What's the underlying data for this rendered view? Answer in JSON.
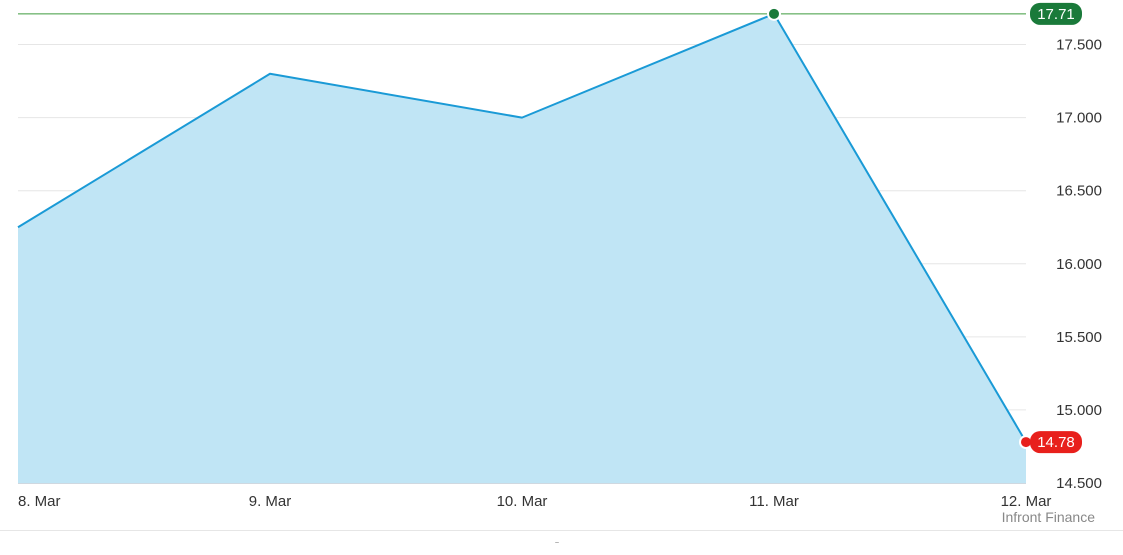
{
  "chart_data": {
    "type": "area",
    "x": [
      "8. Mar",
      "9. Mar",
      "10. Mar",
      "11. Mar",
      "12. Mar"
    ],
    "values": [
      16.25,
      17.3,
      17.0,
      17.71,
      14.78
    ],
    "ylim": [
      14.5,
      17.75
    ],
    "y_ticks": [
      14.5,
      15.0,
      15.5,
      16.0,
      16.5,
      17.0,
      17.5
    ],
    "y_tick_labels": [
      "14.500",
      "15.000",
      "15.500",
      "16.000",
      "16.500",
      "17.000",
      "17.500"
    ],
    "grid": true,
    "high": {
      "value": 17.71,
      "label": "17.71",
      "color": "#1a7a3a"
    },
    "low": {
      "value": 14.78,
      "label": "14.78",
      "color": "#e8201c"
    },
    "line_color": "#1a9ad6",
    "fill_color": "#c0e5f5"
  },
  "footer": {
    "credit": "Infront Finance",
    "glyph": "̈"
  }
}
